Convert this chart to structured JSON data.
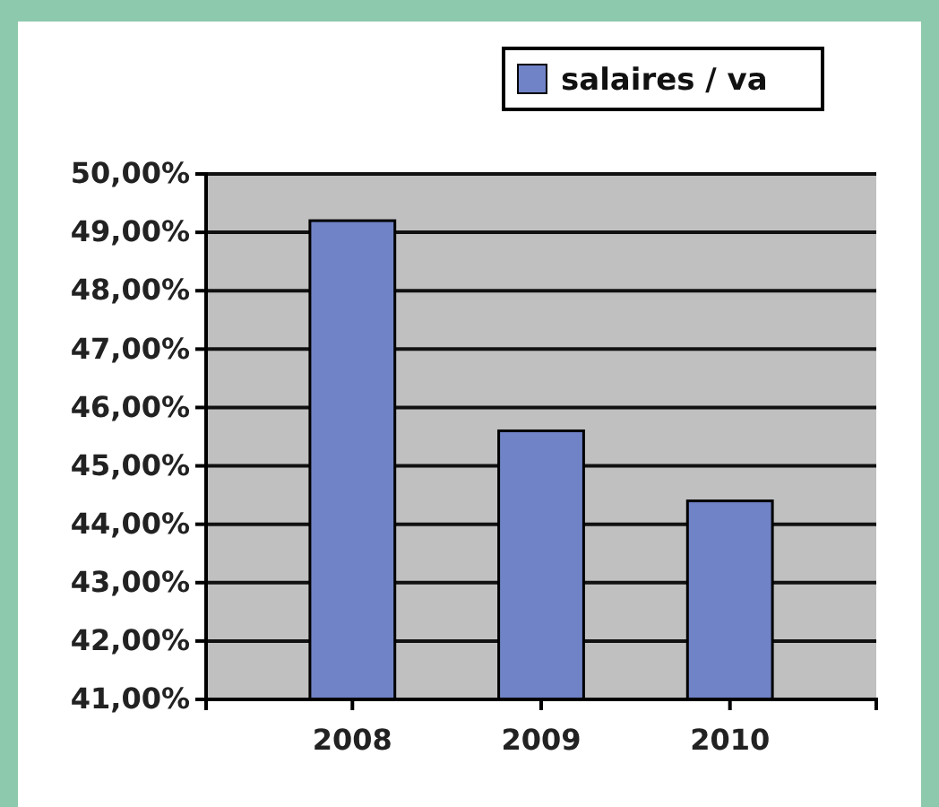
{
  "chart_data": {
    "type": "bar",
    "categories": [
      "2008",
      "2009",
      "2010"
    ],
    "series": [
      {
        "name": "salaires / va",
        "color": "#7083c6",
        "values": [
          49.2,
          45.6,
          44.4
        ]
      }
    ],
    "ylim": [
      41,
      50
    ],
    "yticks": [
      {
        "value": 41,
        "label": "41,00%"
      },
      {
        "value": 42,
        "label": "42,00%"
      },
      {
        "value": 43,
        "label": "43,00%"
      },
      {
        "value": 44,
        "label": "44,00%"
      },
      {
        "value": 45,
        "label": "45,00%"
      },
      {
        "value": 46,
        "label": "46,00%"
      },
      {
        "value": 47,
        "label": "47,00%"
      },
      {
        "value": 48,
        "label": "48,00%"
      },
      {
        "value": 49,
        "label": "49,00%"
      },
      {
        "value": 50,
        "label": "50,00%"
      }
    ],
    "grid": "y",
    "legend": "top right"
  }
}
